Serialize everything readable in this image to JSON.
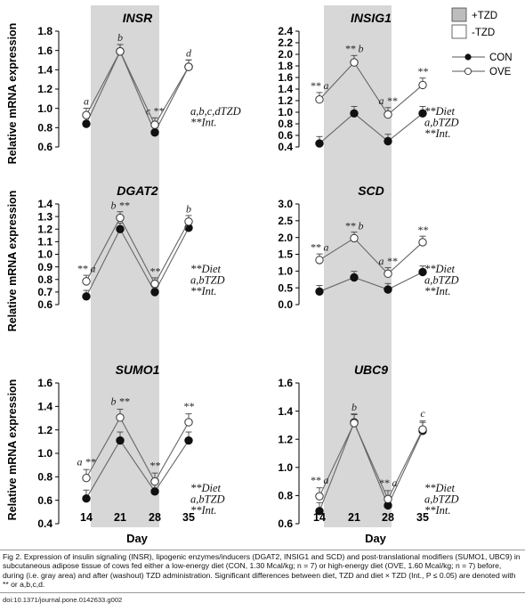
{
  "legend": {
    "tzd_on": "+TZD",
    "tzd_off": "-TZD",
    "con": "CON",
    "ove": "OVE"
  },
  "axis": {
    "ylabel": "Relative mRNA expression",
    "xlabel": "Day",
    "days": [
      "14",
      "21",
      "28",
      "35"
    ],
    "shaded_days": [
      21,
      28
    ]
  },
  "caption": {
    "prefix": "Fig 2. Expression of insulin signaling (",
    "text": "Fig 2. Expression of insulin signaling (INSR), lipogenic enzymes/inducers (DGAT2, INSIG1 and SCD) and post-translational modifiers (SUMO1, UBC9) in subcutaneous adipose tissue of cows fed either a low-energy diet (CON, 1.30 Mcal/kg; n = 7) or high-energy diet (OVE, 1.60 Mcal/kg; n = 7) before, during (i.e. gray area) and after (washout) TZD administration. Significant differences between diet, TZD and diet × TZD (Int., P ≤ 0.05) are denoted with ** or a,b,c,d.",
    "doi": "doi:10.1371/journal.pone.0142633.g002"
  },
  "chart_data": [
    {
      "type": "line",
      "title": "INSR",
      "x": [
        14,
        21,
        28,
        35
      ],
      "ylim": [
        0.6,
        1.8
      ],
      "yticks": [
        "0.6",
        "0.8",
        "1.0",
        "1.2",
        "1.4",
        "1.6",
        "1.8"
      ],
      "series": [
        {
          "name": "CON",
          "values": [
            0.84,
            1.59,
            0.75,
            1.43
          ]
        },
        {
          "name": "OVE",
          "values": [
            0.93,
            1.59,
            0.83,
            1.43
          ]
        }
      ],
      "annotations_above": [
        "a",
        "b",
        "c **",
        "d"
      ],
      "stats": [
        "a,b,c,dTZD",
        "**Int."
      ]
    },
    {
      "type": "line",
      "title": "INSIG1",
      "x": [
        14,
        21,
        28,
        35
      ],
      "ylim": [
        0.4,
        2.4
      ],
      "yticks": [
        "0.4",
        "0.6",
        "0.8",
        "1.0",
        "1.2",
        "1.4",
        "1.6",
        "1.8",
        "2.0",
        "2.2",
        "2.4"
      ],
      "series": [
        {
          "name": "CON",
          "values": [
            0.46,
            0.98,
            0.5,
            0.98
          ]
        },
        {
          "name": "OVE",
          "values": [
            1.22,
            1.86,
            0.96,
            1.47
          ]
        }
      ],
      "annotations_above": [
        "** a",
        "** b",
        "a **",
        "**"
      ],
      "stats": [
        "**Diet",
        "a,bTZD",
        "**Int."
      ]
    },
    {
      "type": "line",
      "title": "DGAT2",
      "x": [
        14,
        21,
        28,
        35
      ],
      "ylim": [
        0.6,
        1.4
      ],
      "yticks": [
        "0.6",
        "0.7",
        "0.8",
        "0.9",
        "1.0",
        "1.1",
        "1.2",
        "1.3",
        "1.4"
      ],
      "series": [
        {
          "name": "CON",
          "values": [
            0.665,
            1.2,
            0.7,
            1.21
          ]
        },
        {
          "name": "OVE",
          "values": [
            0.785,
            1.29,
            0.765,
            1.26
          ]
        }
      ],
      "annotations_above": [
        "** a",
        "b **",
        "**",
        "b"
      ],
      "stats": [
        "**Diet",
        "a,bTZD",
        "**Int."
      ]
    },
    {
      "type": "line",
      "title": "SCD",
      "x": [
        14,
        21,
        28,
        35
      ],
      "ylim": [
        0.0,
        3.0
      ],
      "yticks": [
        "0.0",
        "0.5",
        "1.0",
        "1.5",
        "2.0",
        "2.5",
        "3.0"
      ],
      "series": [
        {
          "name": "CON",
          "values": [
            0.39,
            0.81,
            0.45,
            0.97
          ]
        },
        {
          "name": "OVE",
          "values": [
            1.33,
            1.98,
            0.92,
            1.86
          ]
        }
      ],
      "annotations_above": [
        "** a",
        "** b",
        "a **",
        "**"
      ],
      "stats": [
        "**Diet",
        "a,bTZD",
        "**Int."
      ]
    },
    {
      "type": "line",
      "title": "SUMO1",
      "x": [
        14,
        21,
        28,
        35
      ],
      "ylim": [
        0.4,
        1.6
      ],
      "yticks": [
        "0.4",
        "0.6",
        "0.8",
        "1.0",
        "1.2",
        "1.4",
        "1.6"
      ],
      "series": [
        {
          "name": "CON",
          "values": [
            0.615,
            1.11,
            0.675,
            1.11
          ]
        },
        {
          "name": "OVE",
          "values": [
            0.79,
            1.305,
            0.76,
            1.265
          ]
        }
      ],
      "annotations_above": [
        "a **",
        "b **",
        "**",
        "**"
      ],
      "stats": [
        "**Diet",
        "a,bTZD",
        "**Int."
      ]
    },
    {
      "type": "line",
      "title": "UBC9",
      "x": [
        14,
        21,
        28,
        35
      ],
      "ylim": [
        0.6,
        1.6
      ],
      "yticks": [
        "0.6",
        "0.8",
        "1.0",
        "1.2",
        "1.4",
        "1.6"
      ],
      "series": [
        {
          "name": "CON",
          "values": [
            0.69,
            1.32,
            0.73,
            1.26
          ]
        },
        {
          "name": "OVE",
          "values": [
            0.795,
            1.315,
            0.775,
            1.27
          ]
        }
      ],
      "annotations_above": [
        "** a",
        "b",
        "** a",
        "c"
      ],
      "stats": [
        "**Diet",
        "a,bTZD",
        "**Int."
      ]
    }
  ]
}
